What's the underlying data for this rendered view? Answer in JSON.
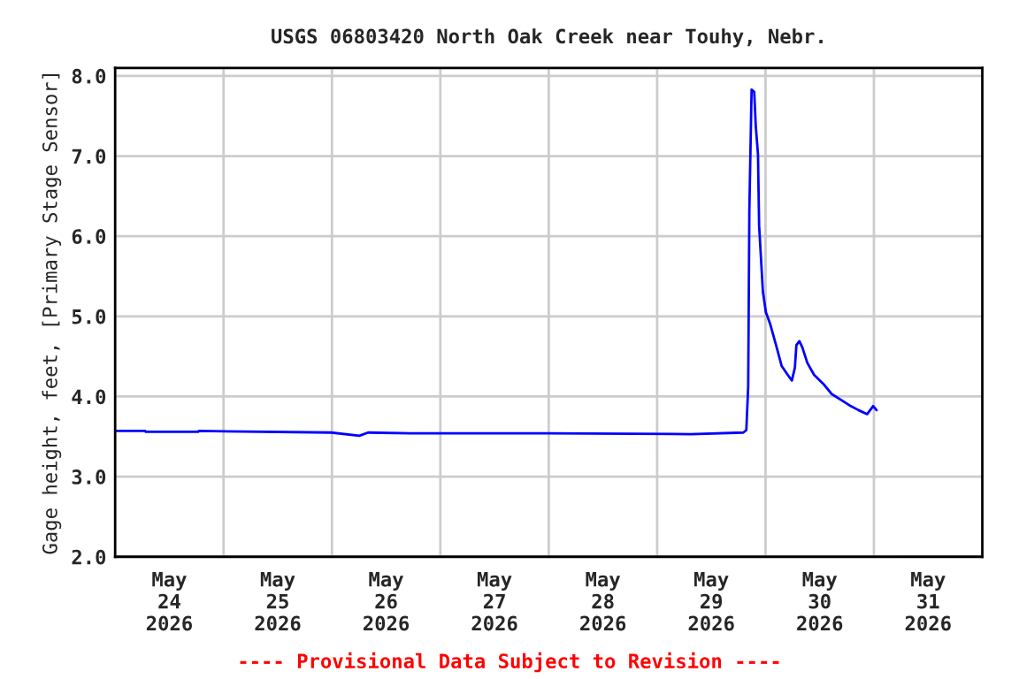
{
  "chart_data": {
    "type": "line",
    "title": "USGS 06803420 North Oak Creek near Touhy, Nebr.",
    "ylabel": "Gage height, feet, [Primary Stage Sensor]",
    "annotations": [
      "---- Provisional Data Subject to Revision ----"
    ],
    "x": [
      "2026-05-24T00:00",
      "2026-05-24T06:40",
      "2026-05-24T06:45",
      "2026-05-24T18:25",
      "2026-05-24T18:30",
      "2026-05-25T23:50",
      "2026-05-26T06:05",
      "2026-05-26T08:00",
      "2026-05-26T17:25",
      "2026-05-28T00:00",
      "2026-05-29T07:20",
      "2026-05-29T19:05",
      "2026-05-29T19:45",
      "2026-05-29T20:10",
      "2026-05-29T20:25",
      "2026-05-29T20:55",
      "2026-05-29T21:30",
      "2026-05-29T21:50",
      "2026-05-29T22:20",
      "2026-05-29T22:35",
      "2026-05-29T23:00",
      "2026-05-29T23:25",
      "2026-05-30T00:05",
      "2026-05-30T01:00",
      "2026-05-30T02:20",
      "2026-05-30T03:35",
      "2026-05-30T04:55",
      "2026-05-30T05:50",
      "2026-05-30T06:30",
      "2026-05-30T06:50",
      "2026-05-30T07:30",
      "2026-05-30T08:10",
      "2026-05-30T09:15",
      "2026-05-30T10:45",
      "2026-05-30T12:45",
      "2026-05-30T14:40",
      "2026-05-30T16:40",
      "2026-05-30T18:35",
      "2026-05-30T20:35",
      "2026-05-30T22:30",
      "2026-05-30T23:10",
      "2026-05-30T23:50",
      "2026-05-31T00:35"
    ],
    "series": [
      {
        "color": "#0000ff",
        "values": [
          3.57,
          3.57,
          3.56,
          3.56,
          3.57,
          3.55,
          3.51,
          3.55,
          3.54,
          3.54,
          3.53,
          3.55,
          3.58,
          4.13,
          6.31,
          7.83,
          7.8,
          7.38,
          7.02,
          6.13,
          5.72,
          5.31,
          5.05,
          4.91,
          4.64,
          4.38,
          4.27,
          4.2,
          4.36,
          4.64,
          4.69,
          4.61,
          4.42,
          4.27,
          4.16,
          4.03,
          3.96,
          3.89,
          3.83,
          3.78,
          3.83,
          3.88,
          3.83
        ]
      }
    ],
    "xlim": [
      "2026-05-24T00:00",
      "2026-06-01T00:00"
    ],
    "xticks": [
      {
        "value": "2026-05-24T12:00",
        "label": "May\n24\n2026"
      },
      {
        "value": "2026-05-25T00:00",
        "label": null
      },
      {
        "value": "2026-05-25T12:00",
        "label": "May\n25\n2026"
      },
      {
        "value": "2026-05-26T00:00",
        "label": null
      },
      {
        "value": "2026-05-26T12:00",
        "label": "May\n26\n2026"
      },
      {
        "value": "2026-05-27T00:00",
        "label": null
      },
      {
        "value": "2026-05-27T12:00",
        "label": "May\n27\n2026"
      },
      {
        "value": "2026-05-28T00:00",
        "label": null
      },
      {
        "value": "2026-05-28T12:00",
        "label": "May\n28\n2026"
      },
      {
        "value": "2026-05-29T00:00",
        "label": null
      },
      {
        "value": "2026-05-29T12:00",
        "label": "May\n29\n2026"
      },
      {
        "value": "2026-05-30T00:00",
        "label": null
      },
      {
        "value": "2026-05-30T12:00",
        "label": "May\n30\n2026"
      },
      {
        "value": "2026-05-31T00:00",
        "label": null
      },
      {
        "value": "2026-05-31T12:00",
        "label": "May\n31\n2026"
      }
    ],
    "ylim": [
      2,
      8.1
    ],
    "yticks": [
      {
        "value": 2,
        "label": "2.0"
      },
      {
        "value": 3,
        "label": "3.0"
      },
      {
        "value": 4,
        "label": "4.0"
      },
      {
        "value": 5,
        "label": "5.0"
      },
      {
        "value": 6,
        "label": "6.0"
      },
      {
        "value": 7,
        "label": "7.0"
      },
      {
        "value": 8,
        "label": "8.0"
      }
    ],
    "grid": true,
    "legend": false
  }
}
